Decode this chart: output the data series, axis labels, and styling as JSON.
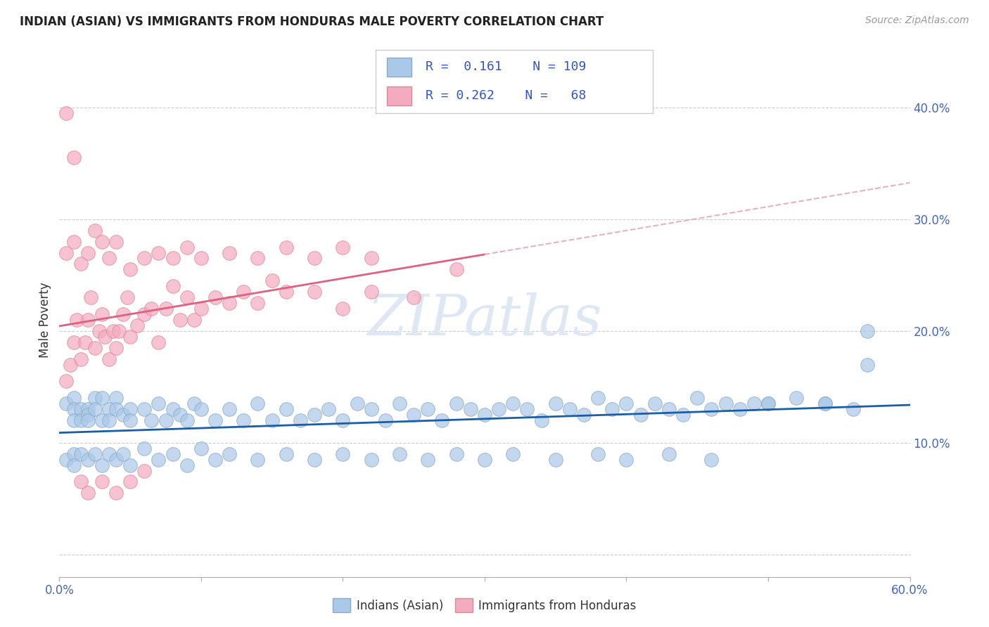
{
  "title": "INDIAN (ASIAN) VS IMMIGRANTS FROM HONDURAS MALE POVERTY CORRELATION CHART",
  "source": "Source: ZipAtlas.com",
  "ylabel": "Male Poverty",
  "xlim": [
    0.0,
    0.6
  ],
  "ylim": [
    -0.02,
    0.44
  ],
  "xticks": [
    0.0,
    0.1,
    0.2,
    0.3,
    0.4,
    0.5,
    0.6
  ],
  "xticklabels": [
    "0.0%",
    "",
    "",
    "",
    "",
    "",
    "60.0%"
  ],
  "yticks": [
    0.0,
    0.1,
    0.2,
    0.3,
    0.4
  ],
  "yticklabels": [
    "",
    "10.0%",
    "20.0%",
    "30.0%",
    "40.0%"
  ],
  "indian_color": "#aac8e8",
  "indian_edge_color": "#88aacc",
  "honduras_color": "#f4aabf",
  "honduras_edge_color": "#dd8899",
  "indian_line_color": "#1a5ea8",
  "honduras_line_color": "#e06080",
  "honduras_dash_color": "#e8b0c0",
  "watermark_color": "#dde8f4",
  "legend_label1": "Indians (Asian)",
  "legend_label2": "Immigrants from Honduras",
  "indian_seed_x": [
    0.005,
    0.01,
    0.01,
    0.01,
    0.015,
    0.015,
    0.02,
    0.02,
    0.02,
    0.025,
    0.025,
    0.03,
    0.03,
    0.035,
    0.035,
    0.04,
    0.04,
    0.045,
    0.05,
    0.05,
    0.06,
    0.065,
    0.07,
    0.075,
    0.08,
    0.085,
    0.09,
    0.095,
    0.1,
    0.11,
    0.12,
    0.13,
    0.14,
    0.15,
    0.16,
    0.17,
    0.18,
    0.19,
    0.2,
    0.21,
    0.22,
    0.23,
    0.24,
    0.25,
    0.26,
    0.27,
    0.28,
    0.29,
    0.3,
    0.31,
    0.32,
    0.33,
    0.34,
    0.35,
    0.36,
    0.37,
    0.38,
    0.39,
    0.4,
    0.41,
    0.42,
    0.43,
    0.44,
    0.45,
    0.46,
    0.47,
    0.48,
    0.49,
    0.5,
    0.52,
    0.54,
    0.56,
    0.57,
    0.005,
    0.01,
    0.01,
    0.015,
    0.02,
    0.025,
    0.03,
    0.035,
    0.04,
    0.045,
    0.05,
    0.06,
    0.07,
    0.08,
    0.09,
    0.1,
    0.11,
    0.12,
    0.14,
    0.16,
    0.18,
    0.2,
    0.22,
    0.24,
    0.26,
    0.28,
    0.3,
    0.32,
    0.35,
    0.38,
    0.4,
    0.43,
    0.46,
    0.5,
    0.54,
    0.57
  ],
  "indian_seed_y": [
    0.135,
    0.14,
    0.13,
    0.12,
    0.13,
    0.12,
    0.13,
    0.125,
    0.12,
    0.14,
    0.13,
    0.14,
    0.12,
    0.13,
    0.12,
    0.14,
    0.13,
    0.125,
    0.13,
    0.12,
    0.13,
    0.12,
    0.135,
    0.12,
    0.13,
    0.125,
    0.12,
    0.135,
    0.13,
    0.12,
    0.13,
    0.12,
    0.135,
    0.12,
    0.13,
    0.12,
    0.125,
    0.13,
    0.12,
    0.135,
    0.13,
    0.12,
    0.135,
    0.125,
    0.13,
    0.12,
    0.135,
    0.13,
    0.125,
    0.13,
    0.135,
    0.13,
    0.12,
    0.135,
    0.13,
    0.125,
    0.14,
    0.13,
    0.135,
    0.125,
    0.135,
    0.13,
    0.125,
    0.14,
    0.13,
    0.135,
    0.13,
    0.135,
    0.135,
    0.14,
    0.135,
    0.13,
    0.2,
    0.085,
    0.09,
    0.08,
    0.09,
    0.085,
    0.09,
    0.08,
    0.09,
    0.085,
    0.09,
    0.08,
    0.095,
    0.085,
    0.09,
    0.08,
    0.095,
    0.085,
    0.09,
    0.085,
    0.09,
    0.085,
    0.09,
    0.085,
    0.09,
    0.085,
    0.09,
    0.085,
    0.09,
    0.085,
    0.09,
    0.085,
    0.09,
    0.085,
    0.135,
    0.135,
    0.17
  ],
  "honduras_seed_x": [
    0.005,
    0.008,
    0.01,
    0.012,
    0.015,
    0.018,
    0.02,
    0.022,
    0.025,
    0.028,
    0.03,
    0.032,
    0.035,
    0.038,
    0.04,
    0.042,
    0.045,
    0.048,
    0.05,
    0.055,
    0.06,
    0.065,
    0.07,
    0.075,
    0.08,
    0.085,
    0.09,
    0.095,
    0.1,
    0.11,
    0.12,
    0.13,
    0.14,
    0.15,
    0.16,
    0.18,
    0.2,
    0.22,
    0.25,
    0.28,
    0.005,
    0.01,
    0.015,
    0.02,
    0.025,
    0.03,
    0.035,
    0.04,
    0.05,
    0.06,
    0.07,
    0.08,
    0.09,
    0.1,
    0.12,
    0.14,
    0.16,
    0.18,
    0.2,
    0.22,
    0.005,
    0.01,
    0.015,
    0.02,
    0.03,
    0.04,
    0.05,
    0.06
  ],
  "honduras_seed_y": [
    0.155,
    0.17,
    0.19,
    0.21,
    0.175,
    0.19,
    0.21,
    0.23,
    0.185,
    0.2,
    0.215,
    0.195,
    0.175,
    0.2,
    0.185,
    0.2,
    0.215,
    0.23,
    0.195,
    0.205,
    0.215,
    0.22,
    0.19,
    0.22,
    0.24,
    0.21,
    0.23,
    0.21,
    0.22,
    0.23,
    0.225,
    0.235,
    0.225,
    0.245,
    0.235,
    0.235,
    0.22,
    0.235,
    0.23,
    0.255,
    0.27,
    0.28,
    0.26,
    0.27,
    0.29,
    0.28,
    0.265,
    0.28,
    0.255,
    0.265,
    0.27,
    0.265,
    0.275,
    0.265,
    0.27,
    0.265,
    0.275,
    0.265,
    0.275,
    0.265,
    0.395,
    0.355,
    0.065,
    0.055,
    0.065,
    0.055,
    0.065,
    0.075
  ]
}
